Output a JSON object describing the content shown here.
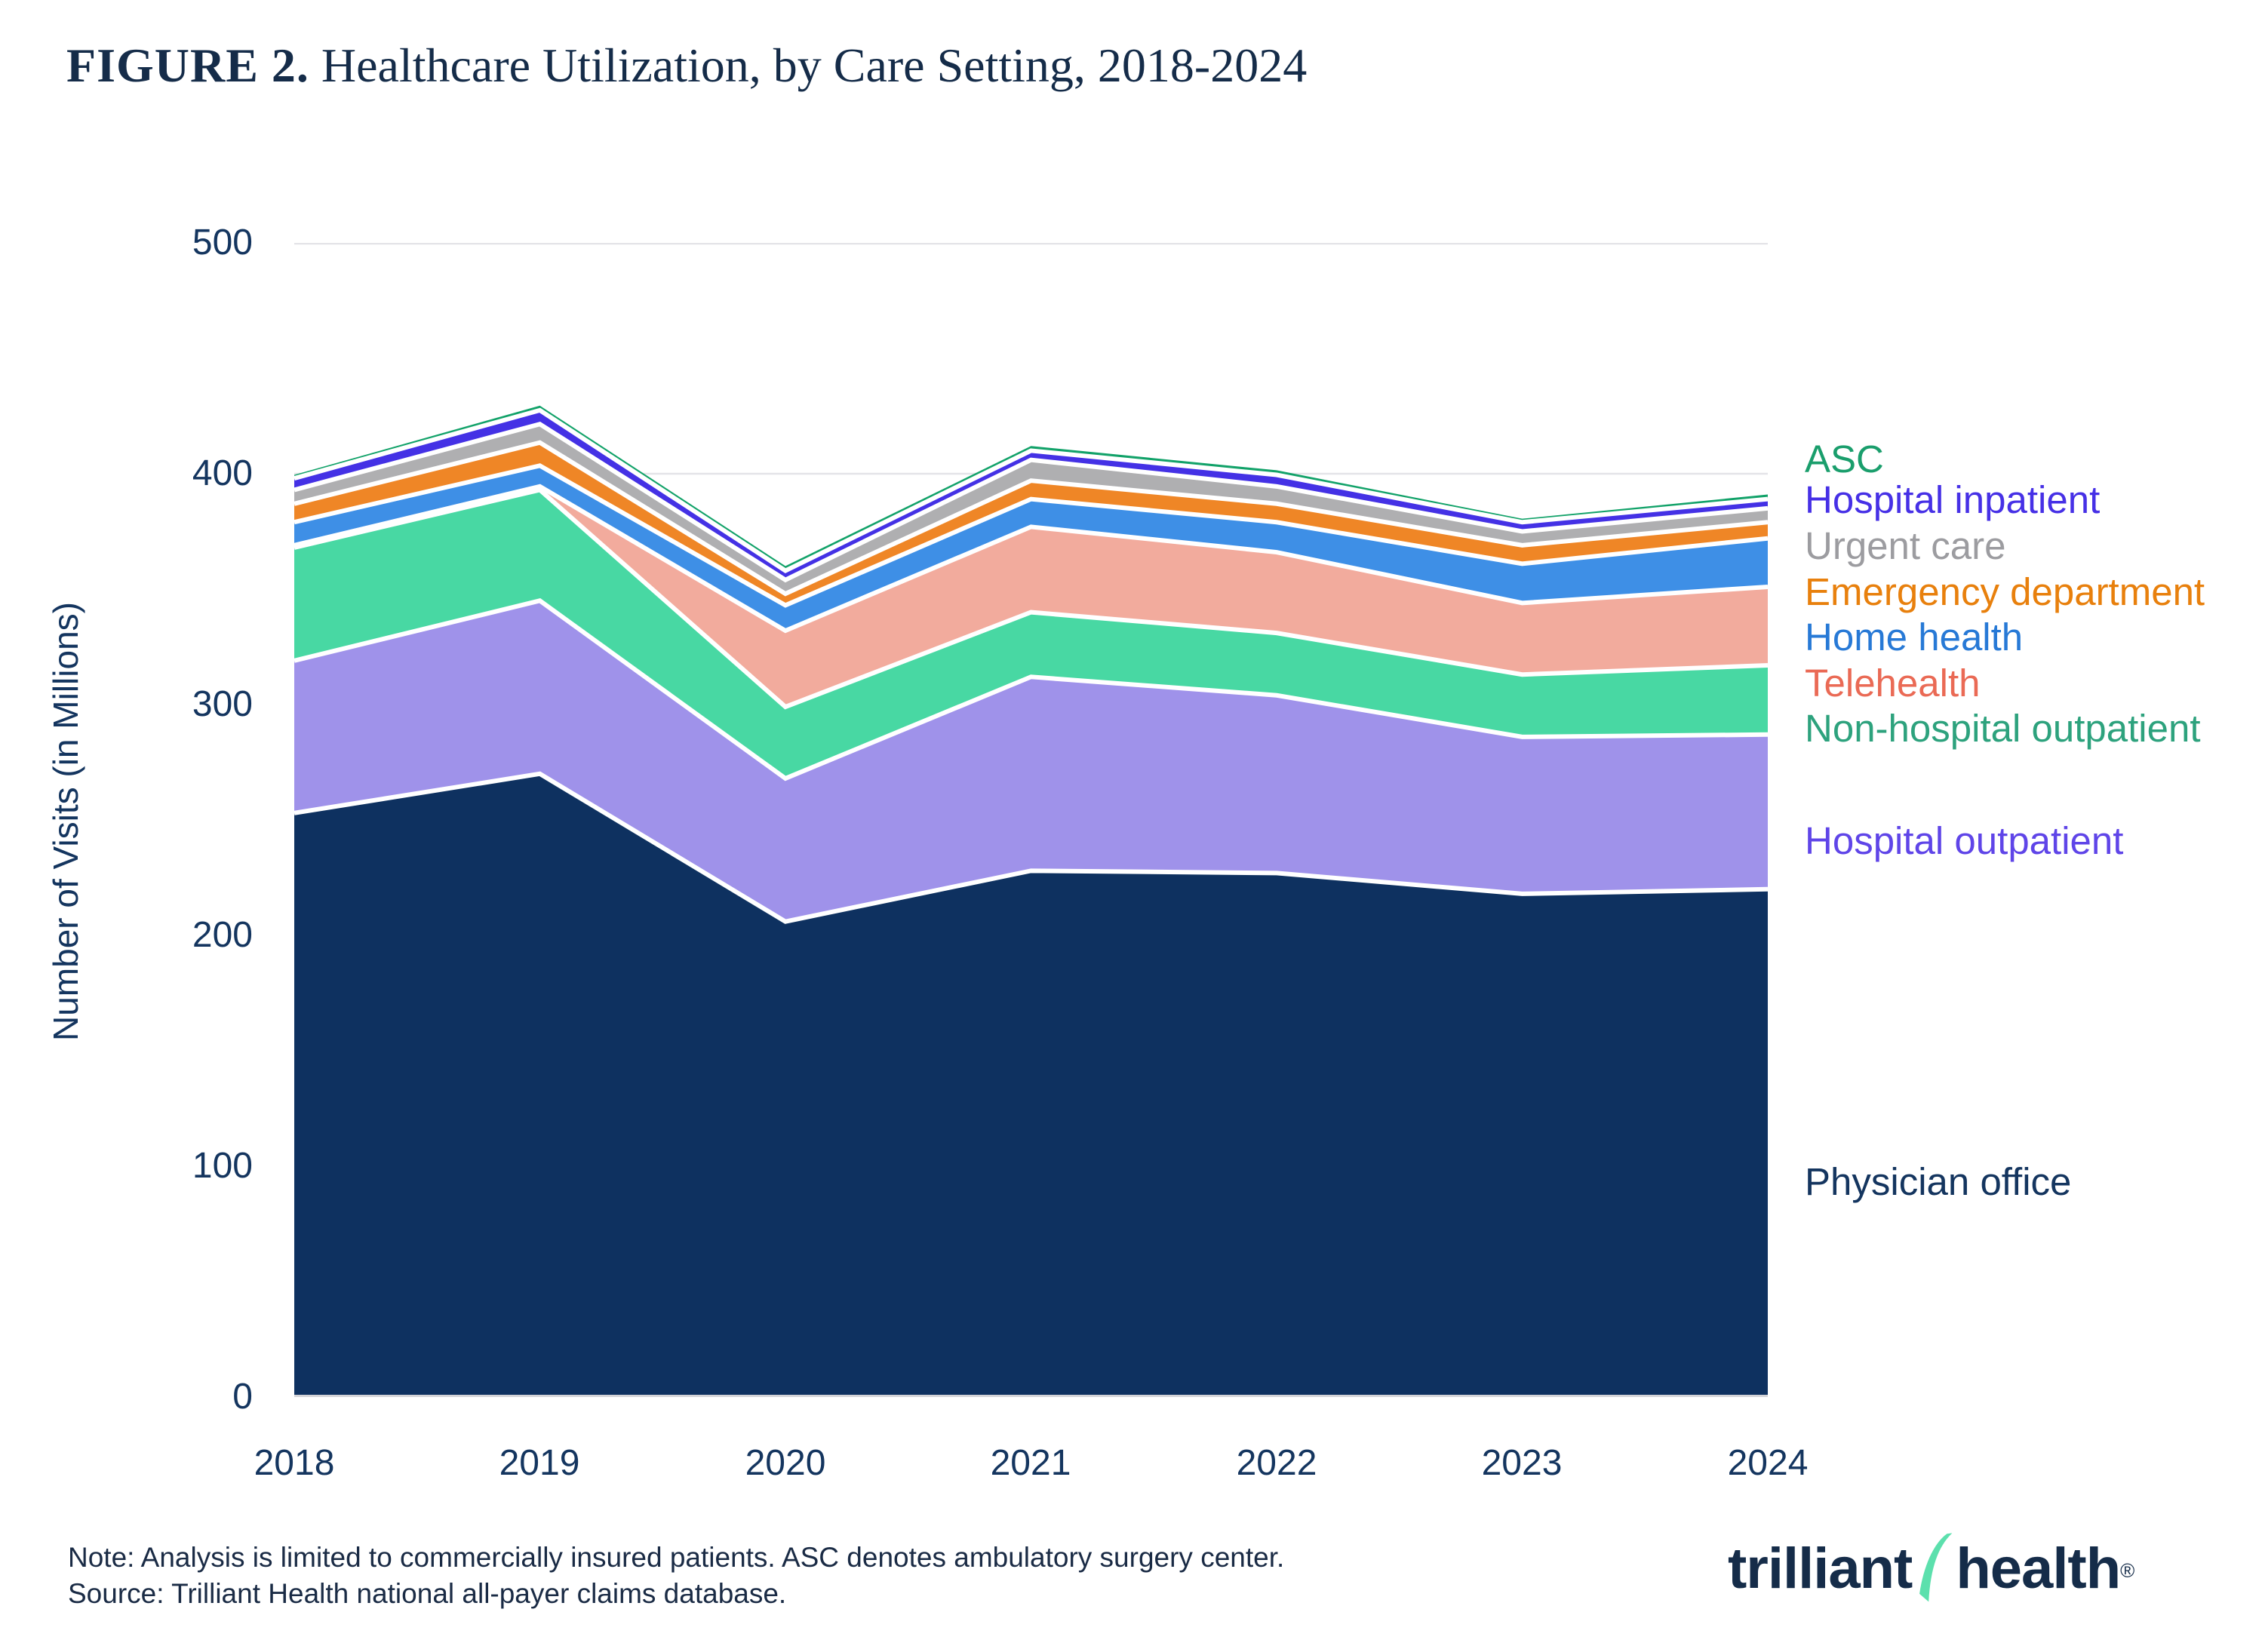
{
  "title": {
    "prefix": "FIGURE 2.",
    "text": " Healthcare Utilization, by Care Setting, 2018-2024"
  },
  "y_axis": {
    "label": "Number of Visits (in Millions)",
    "ticks": [
      "500",
      "400",
      "300",
      "200",
      "100",
      "0"
    ]
  },
  "x_axis": {
    "ticks": [
      "2018",
      "2019",
      "2020",
      "2021",
      "2022",
      "2023",
      "2024"
    ]
  },
  "chart_data": {
    "type": "area",
    "stacked": true,
    "title": "Healthcare Utilization, by Care Setting, 2018-2024",
    "x": [
      2018,
      2019,
      2020,
      2021,
      2022,
      2023,
      2024
    ],
    "xlabel": "",
    "ylabel": "Number of Visits (in Millions)",
    "ylim": [
      0,
      500
    ],
    "ytick_step": 100,
    "grid": "horizontal",
    "gridline_color": "#E4E4E8",
    "baseline_color": "#D4D4D8",
    "separator_color": "#FFFFFF",
    "legend_position": "right",
    "series": [
      {
        "name": "Physician office",
        "color": "#0E3160",
        "values": [
          253,
          270,
          206,
          228,
          227,
          218,
          220
        ]
      },
      {
        "name": "Hospital outpatient",
        "color": "#9F92EA",
        "values": [
          66,
          75,
          62,
          84,
          77,
          68,
          67
        ]
      },
      {
        "name": "Non-hospital outpatient",
        "color": "#48D8A3",
        "values": [
          49,
          48,
          31,
          28,
          27,
          27,
          30
        ]
      },
      {
        "name": "Telehealth",
        "color": "#F2AB9D",
        "values": [
          1,
          1.5,
          33,
          37,
          35,
          31,
          34
        ]
      },
      {
        "name": "Home health",
        "color": "#3E8FE6",
        "values": [
          10,
          9,
          11,
          12,
          13,
          17,
          21
        ]
      },
      {
        "name": "Emergency department",
        "color": "#EF8626",
        "values": [
          8,
          10,
          5,
          8,
          8,
          8,
          7
        ]
      },
      {
        "name": "Urgent care",
        "color": "#AFAFB1",
        "values": [
          6,
          8,
          6,
          9,
          7.5,
          6,
          6
        ]
      },
      {
        "name": "Hospital inpatient",
        "color": "#4431E5",
        "values": [
          5,
          6,
          4,
          4,
          5,
          4,
          4
        ]
      },
      {
        "name": "ASC",
        "color": "#12A269",
        "values": [
          1.5,
          2,
          2,
          2,
          2,
          1.5,
          2
        ]
      }
    ]
  },
  "legend": {
    "items": [
      {
        "label": "ASC",
        "color": "#1A9E6C"
      },
      {
        "label": "Hospital inpatient",
        "color": "#4630E6"
      },
      {
        "label": "Urgent care",
        "color": "#9C9CA0"
      },
      {
        "label": "Emergency department",
        "color": "#E8800D"
      },
      {
        "label": "Home health",
        "color": "#2779D6"
      },
      {
        "label": "Telehealth",
        "color": "#EA6A55"
      },
      {
        "label": "Non-hospital outpatient",
        "color": "#2DA27D"
      },
      {
        "label": "Hospital outpatient",
        "color": "#5F45E8"
      },
      {
        "label": "Physician office",
        "color": "#14355F"
      }
    ]
  },
  "footer": {
    "note": "Note: Analysis is limited to commercially insured patients. ASC denotes ambulatory surgery center.",
    "source": "Source: Trilliant Health national all-payer claims database.",
    "logo_part1": "trilliant",
    "logo_part2": "health",
    "logo_reg": "®",
    "logo_swoosh_color": "#5CE0AD"
  },
  "colors": {
    "text_navy": "#14355F",
    "title_navy": "#152C49"
  }
}
